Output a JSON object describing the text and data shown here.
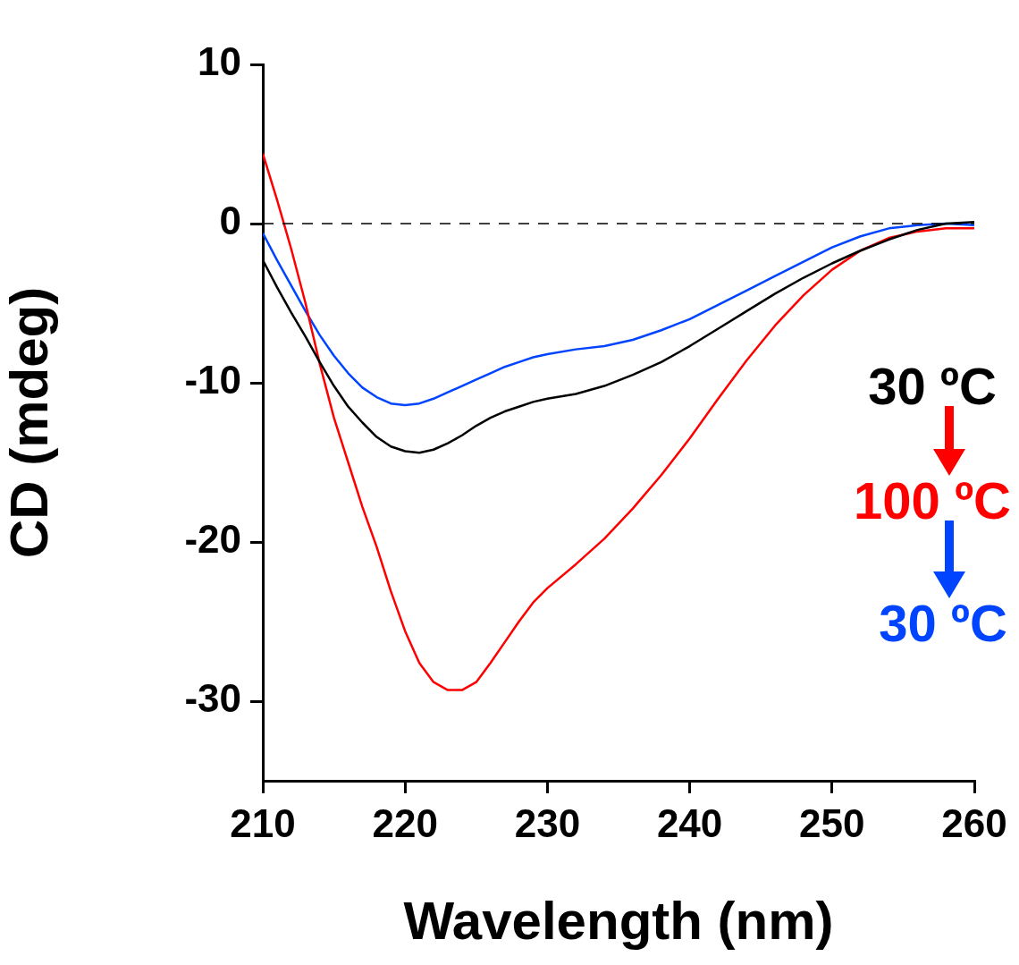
{
  "chart_data": {
    "type": "line",
    "xlabel": "Wavelength (nm)",
    "ylabel": "CD (mdeg)",
    "x": [
      210,
      211,
      212,
      213,
      214,
      215,
      216,
      217,
      218,
      219,
      220,
      221,
      222,
      223,
      224,
      225,
      226,
      227,
      228,
      229,
      230,
      232,
      234,
      236,
      238,
      240,
      242,
      244,
      246,
      248,
      250,
      252,
      254,
      256,
      258,
      260
    ],
    "series": [
      {
        "name": "30 ºC",
        "color": "#000000",
        "values": [
          -2.3,
          -4,
          -5.6,
          -7.1,
          -8.7,
          -10.2,
          -11.5,
          -12.5,
          -13.4,
          -14,
          -14.3,
          -14.4,
          -14.2,
          -13.8,
          -13.3,
          -12.7,
          -12.2,
          -11.8,
          -11.5,
          -11.2,
          -11,
          -10.7,
          -10.2,
          -9.5,
          -8.7,
          -7.7,
          -6.6,
          -5.5,
          -4.4,
          -3.4,
          -2.5,
          -1.7,
          -1,
          -0.4,
          0,
          0.1
        ]
      },
      {
        "name": "100 ºC",
        "color": "#ff0000",
        "values": [
          4.4,
          1.5,
          -1.6,
          -5,
          -8.8,
          -12.2,
          -15,
          -17.8,
          -20.3,
          -23.1,
          -25.6,
          -27.6,
          -28.8,
          -29.3,
          -29.3,
          -28.8,
          -27.6,
          -26.3,
          -25,
          -23.8,
          -22.9,
          -21.4,
          -19.8,
          -17.9,
          -15.8,
          -13.5,
          -11,
          -8.6,
          -6.4,
          -4.5,
          -2.9,
          -1.7,
          -0.9,
          -0.5,
          -0.3,
          -0.3
        ]
      },
      {
        "name": "30 ºC",
        "color": "#0044ff",
        "values": [
          -0.6,
          -2.3,
          -3.9,
          -5.5,
          -7,
          -8.3,
          -9.4,
          -10.3,
          -10.9,
          -11.3,
          -11.4,
          -11.3,
          -11,
          -10.6,
          -10.2,
          -9.8,
          -9.4,
          -9,
          -8.7,
          -8.4,
          -8.2,
          -7.9,
          -7.7,
          -7.3,
          -6.7,
          -6,
          -5.1,
          -4.2,
          -3.3,
          -2.4,
          -1.5,
          -0.8,
          -0.3,
          -0.1,
          0,
          -0.1
        ]
      }
    ],
    "xlim": [
      210,
      260
    ],
    "xticks": [
      210,
      220,
      230,
      240,
      250,
      260
    ],
    "ylim": [
      -35,
      10
    ],
    "yticks": [
      -30,
      -20,
      -10,
      0,
      10
    ],
    "ref_lines": [
      {
        "axis": "y",
        "value": 0,
        "line_style": "dashed",
        "color": "#000000"
      }
    ],
    "grid": false,
    "legend": "right",
    "marker": "none",
    "line_style": "solid"
  }
}
